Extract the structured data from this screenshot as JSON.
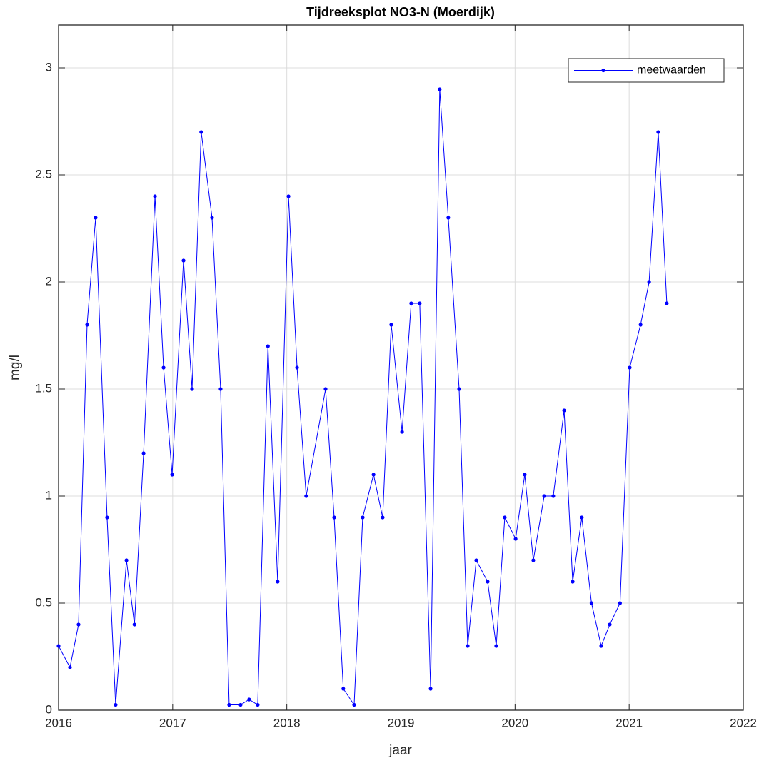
{
  "chart_data": {
    "type": "line",
    "title": "Tijdreeksplot NO3-N (Moerdijk)",
    "x_label": "jaar",
    "y_label": "mg/l",
    "x": [
      2016.0,
      2016.1,
      2016.175,
      2016.25,
      2016.325,
      2016.425,
      2016.5,
      2016.595,
      2016.665,
      2016.745,
      2016.845,
      2016.92,
      2016.995,
      2017.095,
      2017.17,
      2017.25,
      2017.345,
      2017.42,
      2017.495,
      2017.595,
      2017.67,
      2017.745,
      2017.835,
      2017.92,
      2018.015,
      2018.09,
      2018.17,
      2018.34,
      2018.415,
      2018.495,
      2018.59,
      2018.665,
      2018.76,
      2018.84,
      2018.915,
      2019.01,
      2019.09,
      2019.165,
      2019.26,
      2019.34,
      2019.415,
      2019.51,
      2019.585,
      2019.66,
      2019.76,
      2019.835,
      2019.91,
      2020.005,
      2020.085,
      2020.16,
      2020.255,
      2020.335,
      2020.43,
      2020.505,
      2020.585,
      2020.67,
      2020.755,
      2020.83,
      2020.92,
      2021.005,
      2021.1,
      2021.175,
      2021.255,
      2021.33
    ],
    "series": [
      {
        "name": "meetwaarden",
        "color": "#0000ff",
        "values": [
          0.3,
          0.2,
          0.4,
          1.8,
          2.3,
          0.9,
          0.025,
          0.7,
          0.4,
          1.2,
          2.4,
          1.6,
          1.1,
          2.1,
          1.5,
          2.7,
          2.3,
          1.5,
          0.025,
          0.025,
          0.05,
          0.025,
          1.7,
          0.6,
          2.4,
          1.6,
          1.0,
          1.5,
          0.9,
          0.1,
          0.025,
          0.9,
          1.1,
          0.9,
          1.8,
          1.3,
          1.9,
          1.9,
          0.1,
          2.9,
          2.3,
          1.5,
          0.3,
          0.7,
          0.6,
          0.3,
          0.9,
          0.8,
          1.1,
          0.7,
          1.0,
          1.0,
          1.4,
          0.6,
          0.9,
          0.5,
          0.3,
          0.4,
          0.5,
          1.6,
          1.8,
          2.0,
          2.7,
          1.9
        ]
      }
    ],
    "xlim": [
      2016,
      2022
    ],
    "xticks": [
      2016,
      2017,
      2018,
      2019,
      2020,
      2021,
      2022
    ],
    "ylim": [
      0,
      3.2
    ],
    "yticks": [
      0,
      0.5,
      1,
      1.5,
      2,
      2.5,
      3
    ],
    "grid": true,
    "legend": "northeast"
  }
}
